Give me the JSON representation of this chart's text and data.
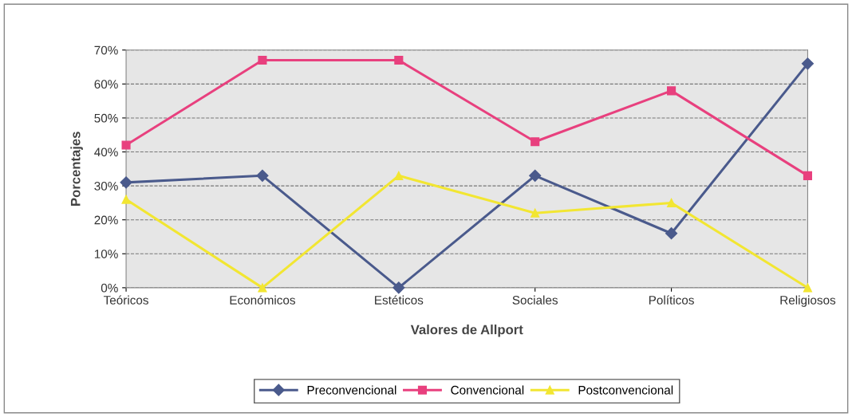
{
  "chart_data": {
    "type": "line",
    "xlabel": "Valores de Allport",
    "ylabel": "Porcentajes",
    "categories": [
      "Teóricos",
      "Económicos",
      "Estéticos",
      "Sociales",
      "Políticos",
      "Religiosos"
    ],
    "ylim": [
      0,
      70
    ],
    "yticks": [
      {
        "value": 0,
        "label": "0%"
      },
      {
        "value": 10,
        "label": "10%"
      },
      {
        "value": 20,
        "label": "20%"
      },
      {
        "value": 30,
        "label": "30%"
      },
      {
        "value": 40,
        "label": "40%"
      },
      {
        "value": 50,
        "label": "50%"
      },
      {
        "value": 60,
        "label": "60%"
      },
      {
        "value": 70,
        "label": "70%"
      }
    ],
    "grid": "y",
    "legend": "bottom",
    "line_style": "solid",
    "series": [
      {
        "name": "Preconvencional",
        "color": "#4a5a8c",
        "marker": "diamond",
        "values": [
          31,
          33,
          0,
          33,
          16,
          66
        ]
      },
      {
        "name": "Convencional",
        "color": "#e8407e",
        "marker": "square",
        "values": [
          42,
          67,
          67,
          43,
          58,
          33
        ]
      },
      {
        "name": "Postconvencional",
        "color": "#f2e632",
        "marker": "triangle",
        "values": [
          26,
          0,
          33,
          22,
          25,
          0
        ]
      }
    ]
  }
}
